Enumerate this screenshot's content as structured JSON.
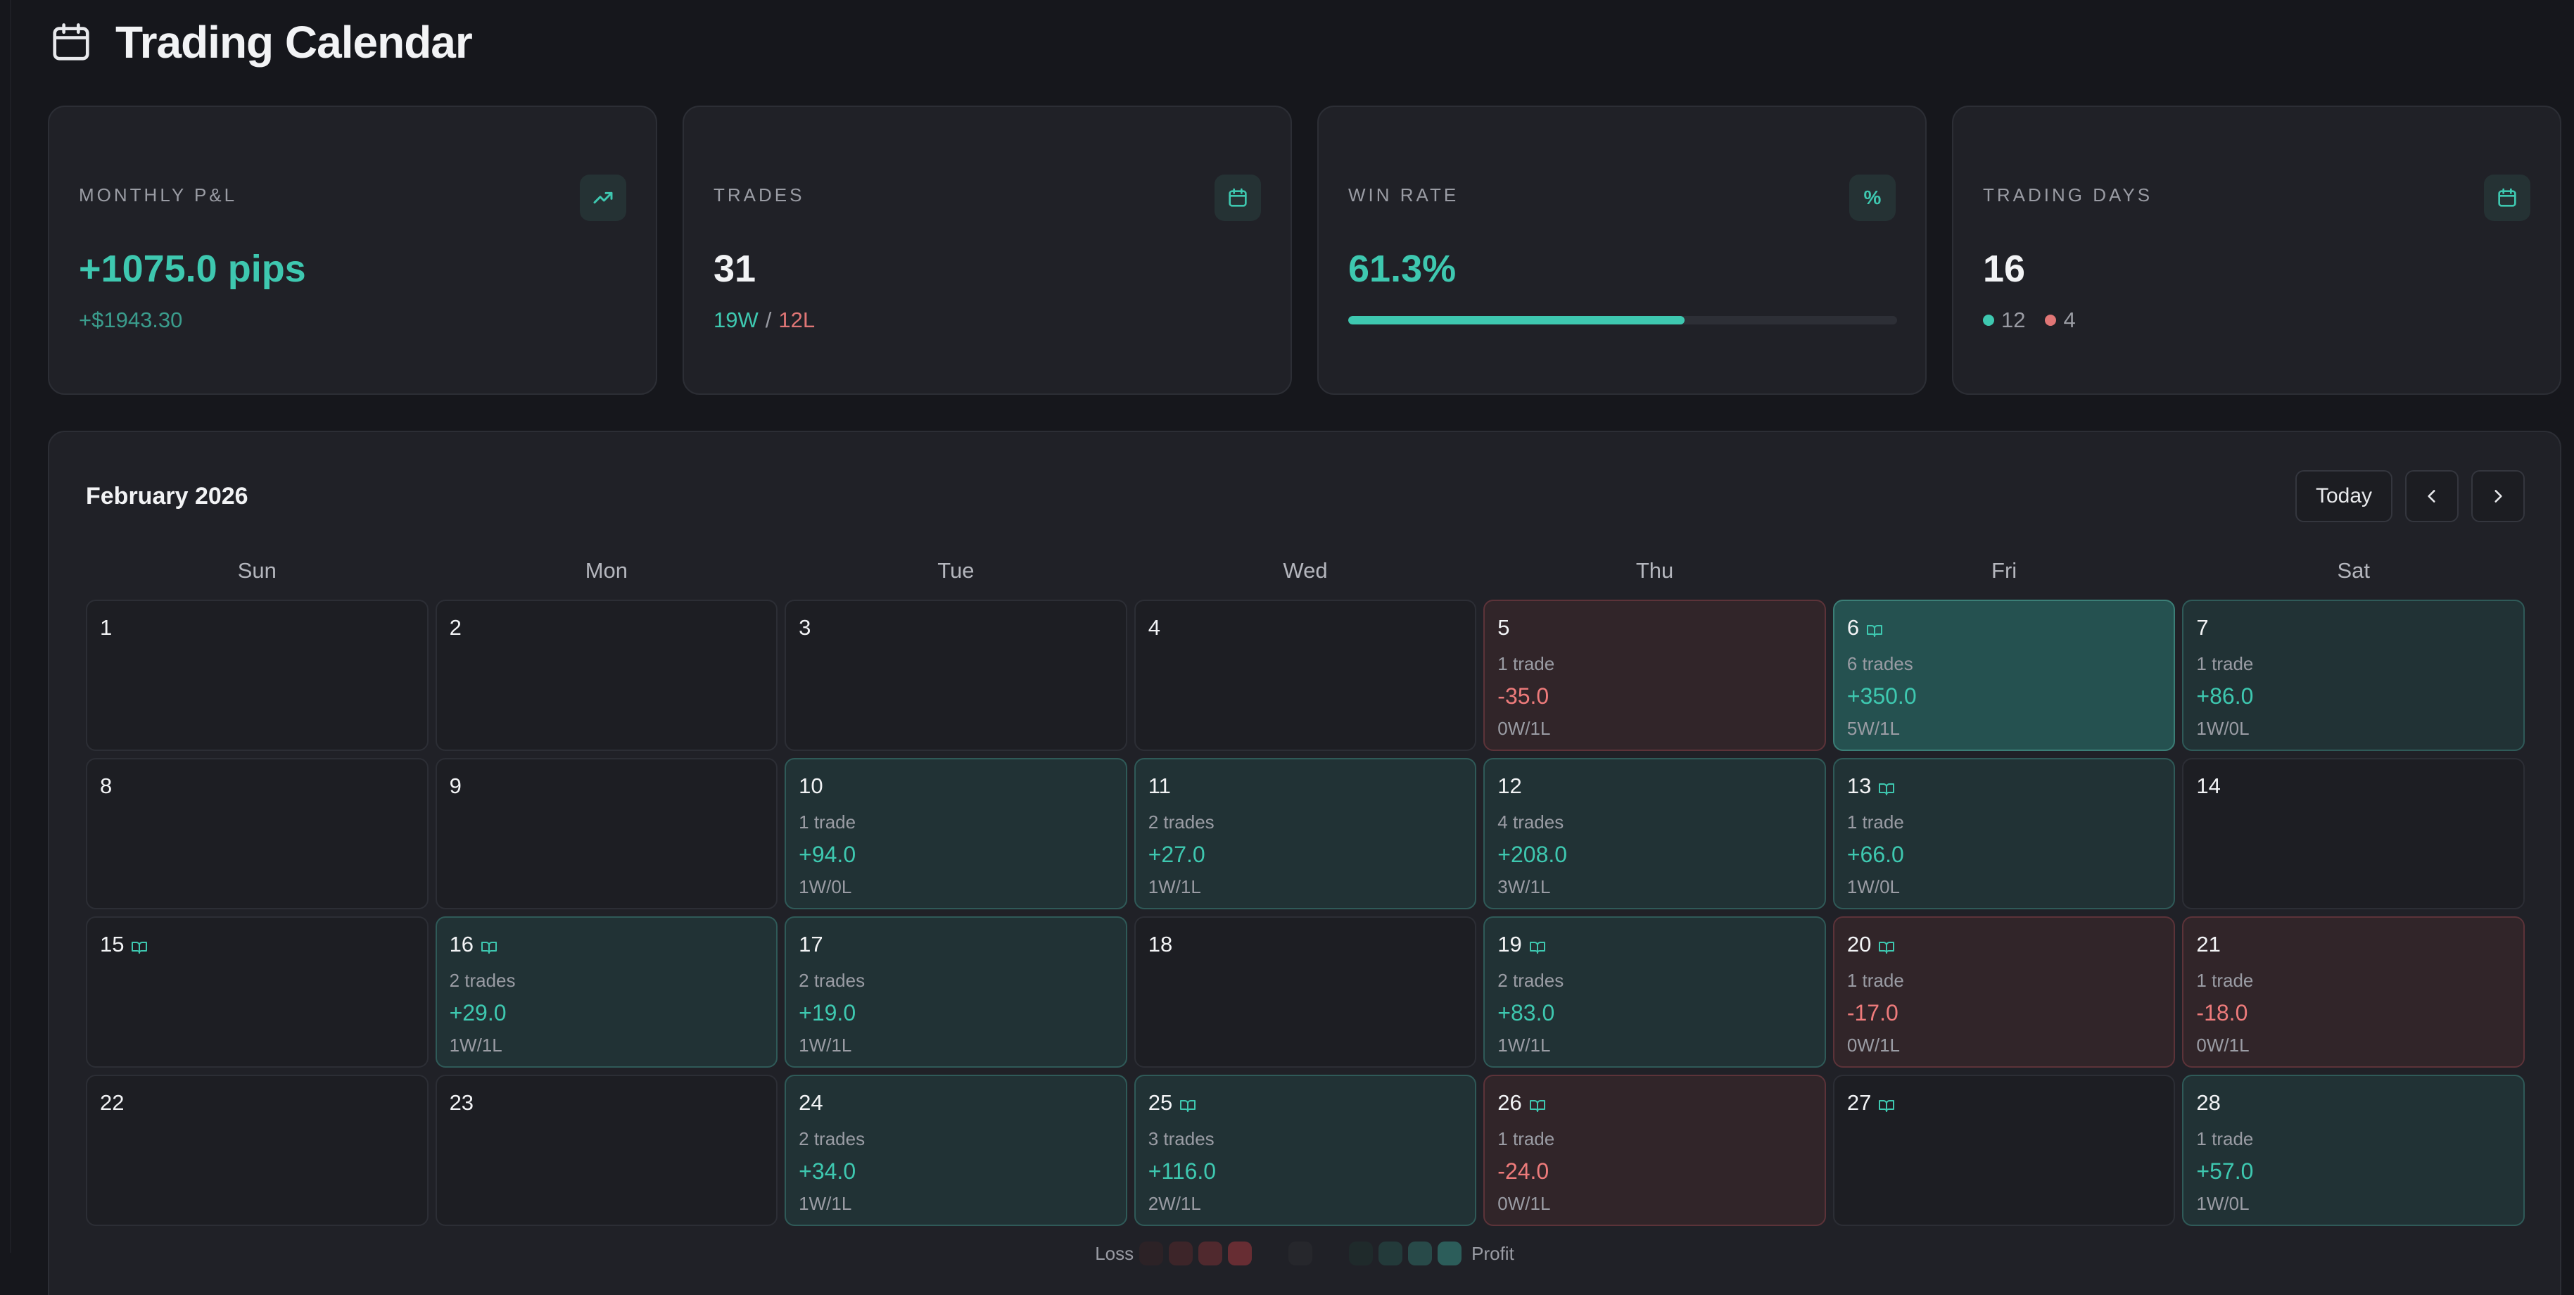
{
  "header": {
    "title": "Trading Calendar",
    "icon": "calendar-icon"
  },
  "stats": {
    "monthly_pnl": {
      "label": "MONTHLY P&L",
      "value": "+1075.0 pips",
      "sub": "+$1943.30",
      "icon": "trending-up-icon"
    },
    "trades": {
      "label": "TRADES",
      "value": "31",
      "wins": "19W",
      "sep": "/",
      "losses": "12L",
      "icon": "calendar-icon"
    },
    "win_rate": {
      "label": "WIN RATE",
      "value": "61.3%",
      "progress": 0.613,
      "icon_text": "%"
    },
    "trading_days": {
      "label": "TRADING DAYS",
      "value": "16",
      "profit_days": "12",
      "loss_days": "4",
      "icon": "calendar-icon"
    }
  },
  "calendar": {
    "title": "February 2026",
    "today_label": "Today",
    "weekdays": [
      "Sun",
      "Mon",
      "Tue",
      "Wed",
      "Thu",
      "Fri",
      "Sat"
    ],
    "days": [
      {
        "date": "1",
        "journal": false,
        "status": "none"
      },
      {
        "date": "2",
        "journal": false,
        "status": "none"
      },
      {
        "date": "3",
        "journal": false,
        "status": "none"
      },
      {
        "date": "4",
        "journal": false,
        "status": "none"
      },
      {
        "date": "5",
        "journal": false,
        "status": "loss",
        "trades": "1 trade",
        "pips": "-35.0",
        "record": "0W/1L"
      },
      {
        "date": "6",
        "journal": true,
        "status": "profit-strong",
        "trades": "6 trades",
        "pips": "+350.0",
        "record": "5W/1L"
      },
      {
        "date": "7",
        "journal": false,
        "status": "profit",
        "trades": "1 trade",
        "pips": "+86.0",
        "record": "1W/0L"
      },
      {
        "date": "8",
        "journal": false,
        "status": "none"
      },
      {
        "date": "9",
        "journal": false,
        "status": "none"
      },
      {
        "date": "10",
        "journal": false,
        "status": "profit",
        "trades": "1 trade",
        "pips": "+94.0",
        "record": "1W/0L"
      },
      {
        "date": "11",
        "journal": false,
        "status": "profit",
        "trades": "2 trades",
        "pips": "+27.0",
        "record": "1W/1L"
      },
      {
        "date": "12",
        "journal": false,
        "status": "profit",
        "trades": "4 trades",
        "pips": "+208.0",
        "record": "3W/1L"
      },
      {
        "date": "13",
        "journal": true,
        "status": "profit",
        "trades": "1 trade",
        "pips": "+66.0",
        "record": "1W/0L"
      },
      {
        "date": "14",
        "journal": false,
        "status": "none"
      },
      {
        "date": "15",
        "journal": true,
        "status": "none"
      },
      {
        "date": "16",
        "journal": true,
        "status": "profit",
        "trades": "2 trades",
        "pips": "+29.0",
        "record": "1W/1L"
      },
      {
        "date": "17",
        "journal": false,
        "status": "profit",
        "trades": "2 trades",
        "pips": "+19.0",
        "record": "1W/1L"
      },
      {
        "date": "18",
        "journal": false,
        "status": "none"
      },
      {
        "date": "19",
        "journal": true,
        "status": "profit",
        "trades": "2 trades",
        "pips": "+83.0",
        "record": "1W/1L"
      },
      {
        "date": "20",
        "journal": true,
        "status": "loss",
        "trades": "1 trade",
        "pips": "-17.0",
        "record": "0W/1L"
      },
      {
        "date": "21",
        "journal": false,
        "status": "loss",
        "trades": "1 trade",
        "pips": "-18.0",
        "record": "0W/1L"
      },
      {
        "date": "22",
        "journal": false,
        "status": "none"
      },
      {
        "date": "23",
        "journal": false,
        "status": "none"
      },
      {
        "date": "24",
        "journal": false,
        "status": "profit",
        "trades": "2 trades",
        "pips": "+34.0",
        "record": "1W/1L"
      },
      {
        "date": "25",
        "journal": true,
        "status": "profit",
        "trades": "3 trades",
        "pips": "+116.0",
        "record": "2W/1L"
      },
      {
        "date": "26",
        "journal": true,
        "status": "loss",
        "trades": "1 trade",
        "pips": "-24.0",
        "record": "0W/1L"
      },
      {
        "date": "27",
        "journal": true,
        "status": "none"
      },
      {
        "date": "28",
        "journal": false,
        "status": "profit",
        "trades": "1 trade",
        "pips": "+57.0",
        "record": "1W/0L"
      }
    ],
    "legend": {
      "loss_label": "Loss",
      "profit_label": "Profit",
      "loss_colors": [
        "#2c2226",
        "#3d2529",
        "#50292e",
        "#672d33"
      ],
      "neutral_color": "#26272c",
      "profit_colors": [
        "#1f2a2b",
        "#233a3a",
        "#284a49",
        "#2c5d5a"
      ]
    }
  }
}
